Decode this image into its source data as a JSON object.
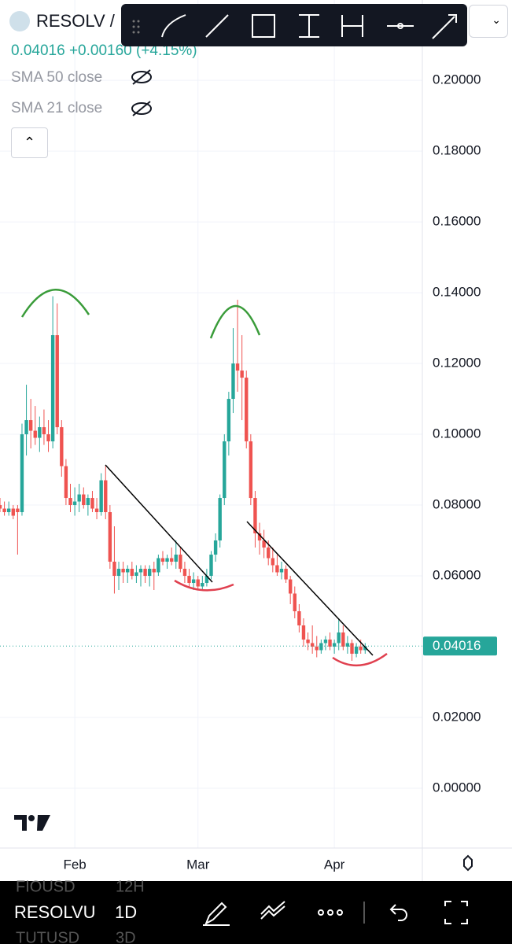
{
  "header": {
    "symbol": "RESOLV /",
    "quote": "0.04016 +0.00160 (+4.15%)",
    "indicators": [
      "SMA 50 close",
      "SMA 21 close"
    ]
  },
  "chart_data": {
    "type": "candlestick",
    "up_color": "#26a69a",
    "down_color": "#ef5350",
    "grid": true,
    "ylim": [
      -0.0169,
      0.2227
    ],
    "xlim": [
      0,
      96
    ],
    "yticks": [
      {
        "value": 0.2,
        "label": "0.20000"
      },
      {
        "value": 0.18,
        "label": "0.18000"
      },
      {
        "value": 0.16,
        "label": "0.16000"
      },
      {
        "value": 0.14,
        "label": "0.14000"
      },
      {
        "value": 0.12,
        "label": "0.12000"
      },
      {
        "value": 0.1,
        "label": "0.10000"
      },
      {
        "value": 0.08,
        "label": "0.08000"
      },
      {
        "value": 0.06,
        "label": "0.06000"
      },
      {
        "value": 0.02,
        "label": "0.02000"
      },
      {
        "value": 0,
        "label": "0.00000"
      }
    ],
    "xticks": [
      {
        "value": 17,
        "label": "Feb"
      },
      {
        "value": 45,
        "label": "Mar"
      },
      {
        "value": 76,
        "label": "Apr"
      }
    ],
    "last_price": 0.04016,
    "ohlc": [
      [
        0.08,
        0.082,
        0.078,
        0.079
      ],
      [
        0.079,
        0.081,
        0.077,
        0.078
      ],
      [
        0.078,
        0.081,
        0.077,
        0.079
      ],
      [
        0.079,
        0.08,
        0.076,
        0.077
      ],
      [
        0.079,
        0.08,
        0.066,
        0.078
      ],
      [
        0.078,
        0.103,
        0.077,
        0.1
      ],
      [
        0.1,
        0.114,
        0.094,
        0.104
      ],
      [
        0.104,
        0.11,
        0.096,
        0.101
      ],
      [
        0.101,
        0.108,
        0.097,
        0.099
      ],
      [
        0.099,
        0.105,
        0.095,
        0.102
      ],
      [
        0.102,
        0.107,
        0.097,
        0.1
      ],
      [
        0.1,
        0.104,
        0.095,
        0.098
      ],
      [
        0.098,
        0.139,
        0.096,
        0.128
      ],
      [
        0.128,
        0.137,
        0.1,
        0.102
      ],
      [
        0.102,
        0.104,
        0.088,
        0.091
      ],
      [
        0.091,
        0.093,
        0.08,
        0.082
      ],
      [
        0.082,
        0.086,
        0.078,
        0.08
      ],
      [
        0.08,
        0.085,
        0.077,
        0.081
      ],
      [
        0.081,
        0.086,
        0.078,
        0.083
      ],
      [
        0.083,
        0.085,
        0.079,
        0.08
      ],
      [
        0.08,
        0.083,
        0.077,
        0.082
      ],
      [
        0.082,
        0.084,
        0.078,
        0.079
      ],
      [
        0.079,
        0.082,
        0.076,
        0.078
      ],
      [
        0.078,
        0.089,
        0.077,
        0.087
      ],
      [
        0.087,
        0.091,
        0.076,
        0.078
      ],
      [
        0.078,
        0.08,
        0.062,
        0.064
      ],
      [
        0.064,
        0.074,
        0.055,
        0.06
      ],
      [
        0.06,
        0.064,
        0.056,
        0.062
      ],
      [
        0.062,
        0.064,
        0.058,
        0.061
      ],
      [
        0.061,
        0.063,
        0.058,
        0.062
      ],
      [
        0.062,
        0.064,
        0.059,
        0.06
      ],
      [
        0.06,
        0.063,
        0.058,
        0.061
      ],
      [
        0.061,
        0.063,
        0.057,
        0.062
      ],
      [
        0.062,
        0.063,
        0.058,
        0.06
      ],
      [
        0.06,
        0.063,
        0.057,
        0.062
      ],
      [
        0.062,
        0.064,
        0.056,
        0.061
      ],
      [
        0.061,
        0.066,
        0.06,
        0.065
      ],
      [
        0.065,
        0.067,
        0.063,
        0.064
      ],
      [
        0.064,
        0.066,
        0.062,
        0.065
      ],
      [
        0.065,
        0.068,
        0.063,
        0.064
      ],
      [
        0.064,
        0.07,
        0.062,
        0.066
      ],
      [
        0.066,
        0.068,
        0.061,
        0.062
      ],
      [
        0.062,
        0.064,
        0.058,
        0.06
      ],
      [
        0.06,
        0.062,
        0.057,
        0.058
      ],
      [
        0.058,
        0.061,
        0.056,
        0.059
      ],
      [
        0.059,
        0.06,
        0.056,
        0.057
      ],
      [
        0.057,
        0.06,
        0.056,
        0.058
      ],
      [
        0.058,
        0.062,
        0.057,
        0.06
      ],
      [
        0.06,
        0.067,
        0.059,
        0.066
      ],
      [
        0.066,
        0.072,
        0.064,
        0.07
      ],
      [
        0.07,
        0.083,
        0.068,
        0.082
      ],
      [
        0.082,
        0.1,
        0.08,
        0.098
      ],
      [
        0.098,
        0.112,
        0.094,
        0.11
      ],
      [
        0.11,
        0.13,
        0.106,
        0.12
      ],
      [
        0.12,
        0.138,
        0.112,
        0.118
      ],
      [
        0.118,
        0.128,
        0.104,
        0.116
      ],
      [
        0.116,
        0.118,
        0.096,
        0.098
      ],
      [
        0.098,
        0.1,
        0.08,
        0.082
      ],
      [
        0.082,
        0.084,
        0.068,
        0.072
      ],
      [
        0.072,
        0.075,
        0.066,
        0.07
      ],
      [
        0.07,
        0.073,
        0.065,
        0.068
      ],
      [
        0.068,
        0.07,
        0.063,
        0.065
      ],
      [
        0.065,
        0.068,
        0.061,
        0.063
      ],
      [
        0.063,
        0.066,
        0.06,
        0.061
      ],
      [
        0.061,
        0.064,
        0.059,
        0.062
      ],
      [
        0.062,
        0.063,
        0.058,
        0.059
      ],
      [
        0.059,
        0.06,
        0.052,
        0.055
      ],
      [
        0.055,
        0.057,
        0.048,
        0.05
      ],
      [
        0.05,
        0.052,
        0.044,
        0.046
      ],
      [
        0.046,
        0.048,
        0.04,
        0.042
      ],
      [
        0.042,
        0.044,
        0.039,
        0.041
      ],
      [
        0.041,
        0.046,
        0.038,
        0.04
      ],
      [
        0.04,
        0.043,
        0.037,
        0.039
      ],
      [
        0.039,
        0.042,
        0.038,
        0.041
      ],
      [
        0.041,
        0.043,
        0.039,
        0.042
      ],
      [
        0.042,
        0.044,
        0.039,
        0.04
      ],
      [
        0.04,
        0.042,
        0.038,
        0.041
      ],
      [
        0.041,
        0.048,
        0.039,
        0.044
      ],
      [
        0.044,
        0.046,
        0.039,
        0.04
      ],
      [
        0.04,
        0.043,
        0.038,
        0.041
      ],
      [
        0.041,
        0.042,
        0.036,
        0.038
      ],
      [
        0.038,
        0.041,
        0.037,
        0.04
      ],
      [
        0.04,
        0.042,
        0.038,
        0.039
      ],
      [
        0.039,
        0.041,
        0.038,
        0.04016
      ]
    ]
  },
  "bottom_bar": {
    "symbol": "RESOLVU",
    "interval": "1D",
    "prev_symbol": "FIOUSD",
    "prev_interval": "12H",
    "next_symbol": "TUTUSD",
    "next_interval": "3D"
  }
}
